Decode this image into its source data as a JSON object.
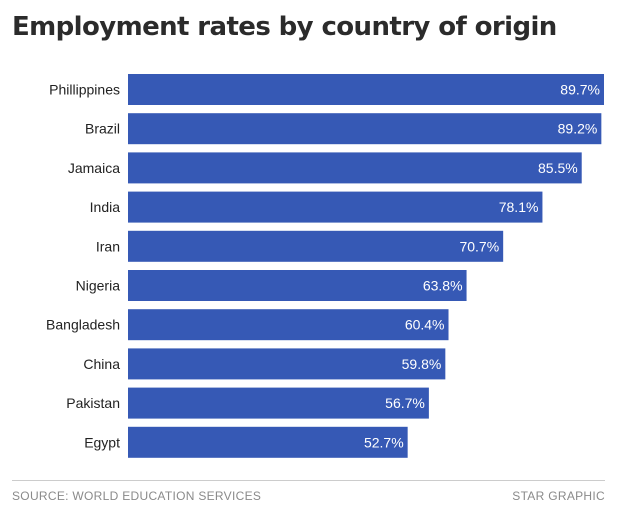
{
  "chart_data": {
    "type": "bar",
    "orientation": "horizontal",
    "title": "Employment rates by country of origin",
    "categories": [
      "Phillippines",
      "Brazil",
      "Jamaica",
      "India",
      "Iran",
      "Nigeria",
      "Bangladesh",
      "China",
      "Pakistan",
      "Egypt"
    ],
    "values": [
      89.7,
      89.2,
      85.5,
      78.1,
      70.7,
      63.8,
      60.4,
      59.8,
      56.7,
      52.7
    ],
    "value_labels": [
      "89.7%",
      "89.2%",
      "85.5%",
      "78.1%",
      "70.7%",
      "63.8%",
      "60.4%",
      "59.8%",
      "56.7%",
      "52.7%"
    ],
    "xlim": [
      0,
      89.7
    ],
    "xlabel": "",
    "ylabel": "",
    "grid": false,
    "legend": "none",
    "bar_color": "#3659b5"
  },
  "footer": {
    "source": "SOURCE: WORLD EDUCATION SERVICES",
    "credit": "STAR GRAPHIC"
  }
}
